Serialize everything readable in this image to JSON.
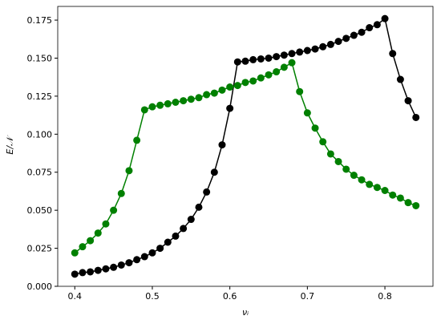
{
  "chart_data": {
    "type": "line",
    "xlabel": "νᵢ",
    "ylabel": "E/𝒩",
    "x": [
      0.4,
      0.41,
      0.42,
      0.43,
      0.44,
      0.45,
      0.46,
      0.47,
      0.48,
      0.49,
      0.5,
      0.51,
      0.52,
      0.53,
      0.54,
      0.55,
      0.56,
      0.57,
      0.58,
      0.59,
      0.6,
      0.61,
      0.62,
      0.63,
      0.64,
      0.65,
      0.66,
      0.67,
      0.68,
      0.69,
      0.7,
      0.71,
      0.72,
      0.73,
      0.74,
      0.75,
      0.76,
      0.77,
      0.78,
      0.79,
      0.8,
      0.81,
      0.82,
      0.83,
      0.84
    ],
    "series": [
      {
        "color": "#000000",
        "values": [
          0.008,
          0.009,
          0.0095,
          0.0105,
          0.0115,
          0.0125,
          0.014,
          0.0155,
          0.0175,
          0.0195,
          0.022,
          0.025,
          0.029,
          0.033,
          0.038,
          0.044,
          0.052,
          0.062,
          0.075,
          0.093,
          0.117,
          0.1475,
          0.148,
          0.149,
          0.1495,
          0.15,
          0.151,
          0.152,
          0.153,
          0.154,
          0.155,
          0.156,
          0.1575,
          0.159,
          0.161,
          0.163,
          0.165,
          0.167,
          0.17,
          0.172,
          0.176,
          0.153,
          0.136,
          0.122,
          0.111
        ]
      },
      {
        "color": "#008000",
        "values": [
          0.022,
          0.026,
          0.03,
          0.035,
          0.041,
          0.05,
          0.061,
          0.076,
          0.096,
          0.116,
          0.118,
          0.119,
          0.12,
          0.121,
          0.122,
          0.123,
          0.124,
          0.126,
          0.127,
          0.129,
          0.131,
          0.132,
          0.134,
          0.135,
          0.137,
          0.139,
          0.141,
          0.144,
          0.147,
          0.128,
          0.114,
          0.104,
          0.095,
          0.087,
          0.082,
          0.077,
          0.073,
          0.07,
          0.067,
          0.065,
          0.063,
          0.06,
          0.058,
          0.055,
          0.053
        ]
      }
    ],
    "xlim": [
      0.378,
      0.862
    ],
    "ylim": [
      0,
      0.184
    ],
    "xticks": [
      0.4,
      0.5,
      0.6,
      0.7,
      0.8
    ],
    "yticks": [
      {
        "value": 0,
        "label": "0.000"
      },
      {
        "value": 0.025,
        "label": "0.025"
      },
      {
        "value": 0.05,
        "label": "0.050"
      },
      {
        "value": 0.075,
        "label": "0.075"
      },
      {
        "value": 0.1,
        "label": "0.100"
      },
      {
        "value": 0.125,
        "label": "0.125"
      },
      {
        "value": 0.15,
        "label": "0.150"
      },
      {
        "value": 0.175,
        "label": "0.175"
      }
    ]
  }
}
